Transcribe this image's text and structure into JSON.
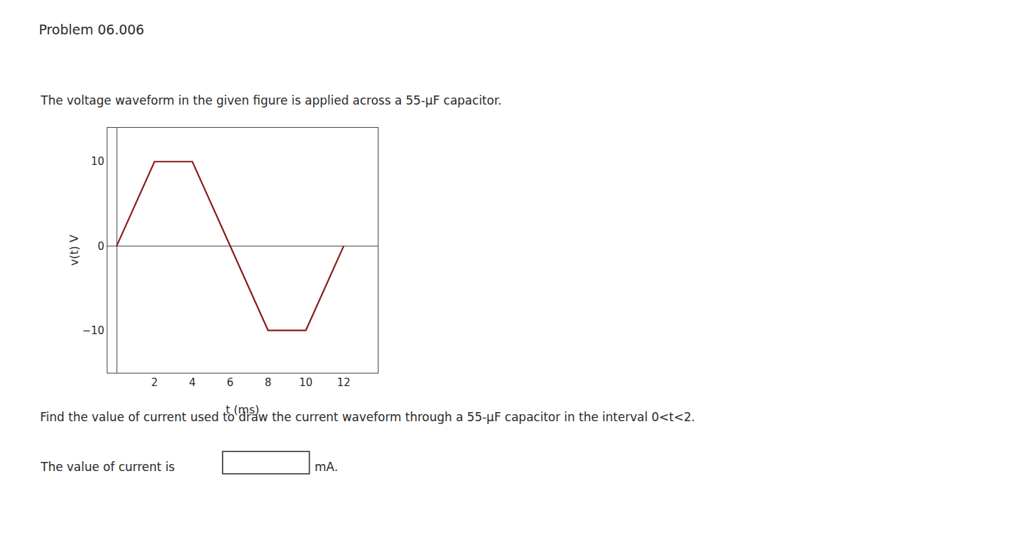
{
  "chart_data": {
    "type": "line",
    "title": "Problem 06.006",
    "subtitle": "The voltage waveform in the given figure is applied across a 55-μF capacitor.",
    "xlabel": "t (ms)",
    "ylabel": "v(t) V",
    "x": [
      0,
      2,
      4,
      6,
      8,
      10,
      12
    ],
    "values": [
      0,
      10,
      10,
      0,
      -10,
      -10,
      0
    ],
    "color": "#8B1A1A",
    "xlim": [
      -0.5,
      13.8
    ],
    "ylim": [
      -15,
      14
    ],
    "xticks": [
      2,
      4,
      6,
      8,
      10,
      12
    ],
    "yticks": [
      10,
      0,
      {
        "value": -10,
        "label": "−10"
      }
    ],
    "grid": false,
    "annotations": [
      "Find the value of current used to draw the current waveform through a 55-μF capacitor in the interval 0<t<2.",
      "The value of current is",
      "mA."
    ]
  }
}
